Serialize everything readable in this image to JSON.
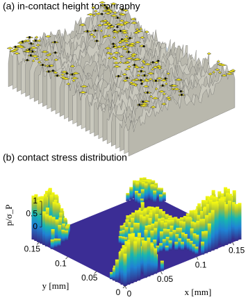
{
  "chart_data": [
    {
      "type": "surface",
      "title": "(a) in-contact height topography"
    },
    {
      "type": "surface",
      "title": "(b) contact stress distribution",
      "xlabel": "x [mm]",
      "ylabel": "y [mm]",
      "zlabel": "p/σ_P",
      "xlim": [
        0,
        0.16
      ],
      "ylim": [
        0,
        0.16
      ],
      "zlim": [
        0,
        1
      ],
      "xticks": [
        0,
        0.05,
        0.1,
        0.15
      ],
      "yticks": [
        0,
        0.05,
        0.1,
        0.15
      ],
      "zticks": [
        0,
        0.5,
        1
      ]
    }
  ]
}
